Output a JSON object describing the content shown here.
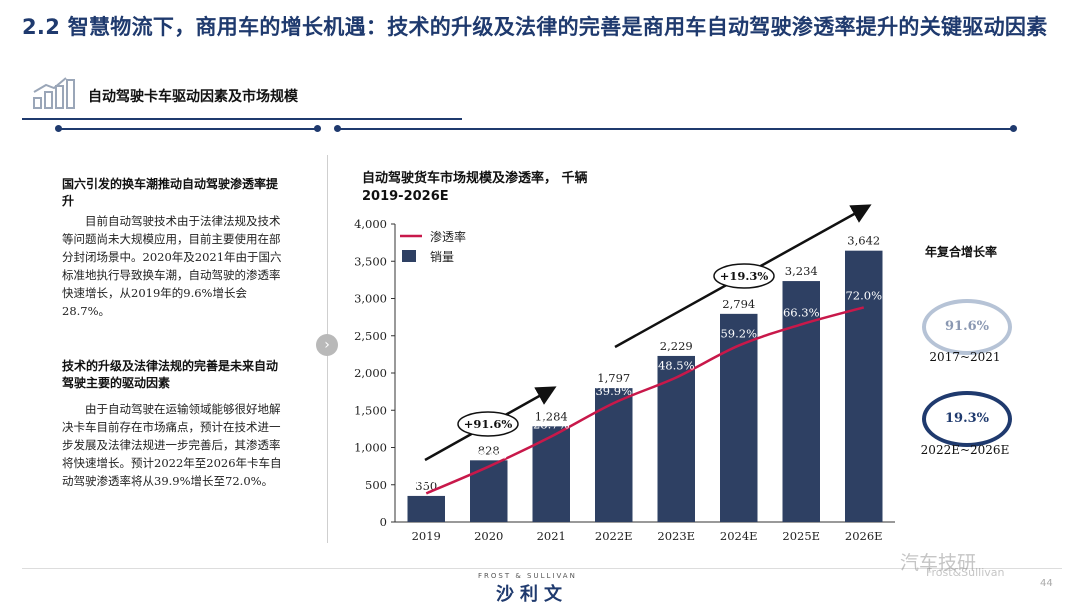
{
  "page": {
    "title": "2.2 智慧物流下，商用车的增长机遇：技术的升级及法律的完善是商用车自动驾驶渗透率提升的关键驱动因素",
    "section_label": "自动驾驶卡车驱动因素及市场规模",
    "page_number": "44"
  },
  "left_panel": {
    "block1": {
      "heading": "国六引发的换车潮推动自动驾驶渗透率提升",
      "body": "目前自动驾驶技术由于法律法规及技术等问题尚未大规模应用，目前主要使用在部分封闭场景中。2020年及2021年由于国六标准地执行导致换车潮，自动驾驶的渗透率快速增长，从2019年的9.6%增长会28.7%。"
    },
    "block2": {
      "heading": "技术的升级及法律法规的完善是未来自动驾驶主要的驱动因素",
      "body": "由于自动驾驶在运输领域能够很好地解决卡车目前存在市场痛点，预计在技术进一步发展及法律法规进一步完善后，其渗透率将快速增长。预计2022年至2026年卡车自动驾驶渗透率将从39.9%增长至72.0%。"
    }
  },
  "chart": {
    "title_line1": "自动驾驶货车市场规模及渗透率，  千辆",
    "title_line2": "2019-2026E"
  },
  "chart_data": {
    "type": "bar",
    "categories": [
      "2019",
      "2020",
      "2021",
      "2022E",
      "2023E",
      "2024E",
      "2025E",
      "2026E"
    ],
    "series": [
      {
        "name": "销量",
        "type": "bar",
        "values": [
          350,
          828,
          1284,
          1797,
          2229,
          2794,
          3234,
          3642
        ],
        "value_labels": [
          "350",
          "828",
          "1,284",
          "1,797",
          "2,229",
          "2,794",
          "3,234",
          "3,642"
        ],
        "color": "#2e4063"
      },
      {
        "name": "渗透率",
        "type": "line",
        "values": [
          9.6,
          18.6,
          28.7,
          39.9,
          48.5,
          59.2,
          66.3,
          72.0
        ],
        "value_labels": [
          "9.6%",
          "18.6%",
          "28.7%",
          "39.9%",
          "48.5%",
          "59.2%",
          "66.3%",
          "72.0%"
        ],
        "color": "#c8184a"
      }
    ],
    "y_ticks": [
      "0",
      "500",
      "1,000",
      "1,500",
      "2,000",
      "2,500",
      "3,000",
      "3,500",
      "4,000"
    ],
    "ylim": [
      0,
      4000
    ],
    "annotations": [
      "+91.6%",
      "+19.3%"
    ]
  },
  "cagr": {
    "title": "年复合增长率",
    "items": [
      {
        "value": "91.6%",
        "period": "2017~2021"
      },
      {
        "value": "19.3%",
        "period": "2022E~2026E"
      }
    ]
  },
  "footer": {
    "brand_small": "FROST & SULLIVAN",
    "brand": "沙利文",
    "watermark": "汽车技研",
    "watermark_sub": "Frost&Sullivan"
  },
  "colors": {
    "navy": "#1f3a6e",
    "bar": "#2e4063",
    "line": "#c8184a"
  }
}
